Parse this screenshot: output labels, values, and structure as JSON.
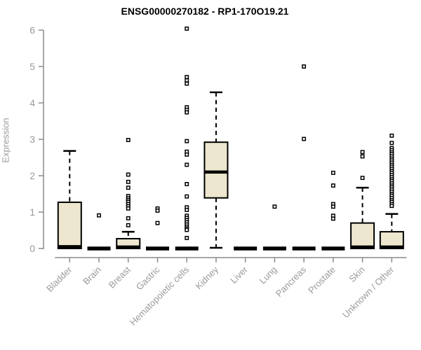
{
  "chart_data": {
    "type": "boxplot",
    "title": "ENSG00000270182 - RP1-170O19.21",
    "xlabel": "",
    "ylabel": "Expression",
    "ylim": [
      0,
      6
    ],
    "yticks": [
      0,
      1,
      2,
      3,
      4,
      5,
      6
    ],
    "grid": false,
    "legend": "none",
    "categories": [
      "Bladder",
      "Brain",
      "Breast",
      "Gastric",
      "Hematopoietic cells",
      "Kidney",
      "Liver",
      "Lung",
      "Pancreas",
      "Prostate",
      "Skin",
      "Unknown / Other"
    ],
    "boxes": [
      {
        "label": "Bladder",
        "flat": false,
        "low": 0,
        "q1": 0,
        "median": 0.05,
        "q3": 1.27,
        "high": 2.68,
        "outliers": []
      },
      {
        "label": "Brain",
        "flat": true,
        "low": 0,
        "q1": 0,
        "median": 0,
        "q3": 0,
        "high": 0,
        "outliers": [
          0.91
        ]
      },
      {
        "label": "Breast",
        "flat": false,
        "low": 0,
        "q1": 0,
        "median": 0.04,
        "q3": 0.27,
        "high": 0.46,
        "outliers": [
          2.98,
          2.03,
          1.83,
          1.67,
          1.44,
          1.38,
          1.33,
          1.28,
          1.22,
          1.16,
          1.1,
          0.83,
          0.64
        ]
      },
      {
        "label": "Gastric",
        "flat": true,
        "low": 0,
        "q1": 0,
        "median": 0,
        "q3": 0,
        "high": 0,
        "outliers": [
          1.1,
          1.04,
          0.7
        ]
      },
      {
        "label": "Hematopoietic cells",
        "flat": true,
        "low": 0,
        "q1": 0,
        "median": 0,
        "q3": 0,
        "high": 0,
        "outliers": [
          6.04,
          4.71,
          4.62,
          4.53,
          3.88,
          3.81,
          3.74,
          2.95,
          2.66,
          2.58,
          2.3,
          1.77,
          1.43,
          1.13,
          1.06,
          0.9,
          0.84,
          0.78,
          0.72,
          0.66,
          0.6,
          0.55,
          0.51,
          0.29
        ]
      },
      {
        "label": "Kidney",
        "flat": false,
        "low": 0.02,
        "q1": 1.39,
        "median": 2.1,
        "q3": 2.92,
        "high": 4.29,
        "outliers": []
      },
      {
        "label": "Liver",
        "flat": true,
        "low": 0,
        "q1": 0,
        "median": 0,
        "q3": 0,
        "high": 0,
        "outliers": []
      },
      {
        "label": "Lung",
        "flat": true,
        "low": 0,
        "q1": 0,
        "median": 0,
        "q3": 0,
        "high": 0,
        "outliers": [
          1.15
        ]
      },
      {
        "label": "Pancreas",
        "flat": true,
        "low": 0,
        "q1": 0,
        "median": 0,
        "q3": 0,
        "high": 0,
        "outliers": [
          5.0,
          3.01
        ]
      },
      {
        "label": "Prostate",
        "flat": true,
        "low": 0,
        "q1": 0,
        "median": 0,
        "q3": 0,
        "high": 0,
        "outliers": [
          2.08,
          1.73,
          1.22,
          1.15,
          0.9,
          0.82
        ]
      },
      {
        "label": "Skin",
        "flat": false,
        "low": 0,
        "q1": 0,
        "median": 0.04,
        "q3": 0.7,
        "high": 1.67,
        "outliers": [
          2.65,
          2.53,
          1.94
        ]
      },
      {
        "label": "Unknown / Other",
        "flat": false,
        "low": 0,
        "q1": 0,
        "median": 0.04,
        "q3": 0.46,
        "high": 0.95,
        "outliers": [
          3.1,
          2.9,
          2.76,
          2.7,
          2.64,
          2.59,
          2.53,
          2.47,
          2.42,
          2.36,
          2.3,
          2.25,
          2.19,
          2.13,
          2.08,
          2.02,
          1.96,
          1.9,
          1.85,
          1.79,
          1.73,
          1.68,
          1.62,
          1.56,
          1.5,
          1.45,
          1.39,
          1.33,
          1.28,
          1.22,
          1.17
        ]
      }
    ],
    "colors": {
      "box_fill": "#ECE7CE",
      "box_stroke": "#000000",
      "median": "#000000",
      "outlier_stroke": "#000000",
      "outlier_fill": "#FFFFFF",
      "axis_line": "#8c8c8c",
      "tick_label": "#9a9a9a",
      "title": "#000000",
      "background": "#FFFFFF"
    }
  }
}
